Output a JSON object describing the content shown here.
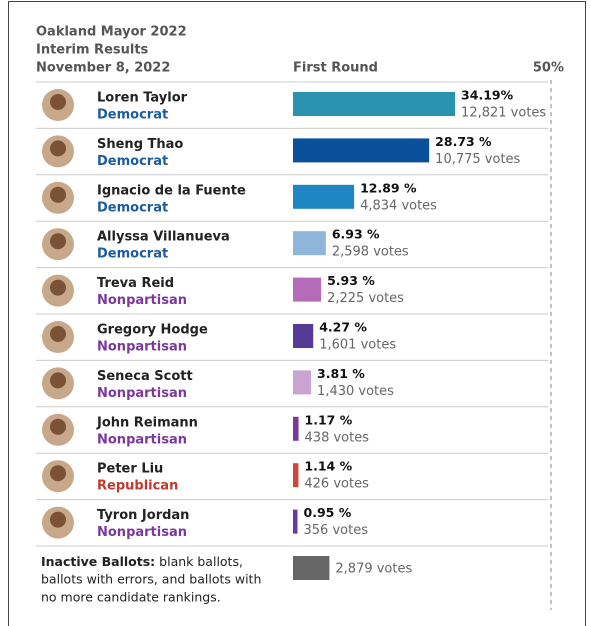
{
  "chart_data": {
    "type": "bar",
    "title": "Oakland Mayor 2022",
    "subtitle": "Interim Results",
    "date": "November 8, 2022",
    "column_label": "First Round",
    "xlim": [
      0,
      50
    ],
    "xticks": [
      {
        "value": 50,
        "label": "50%"
      }
    ],
    "party_colors": {
      "Democrat": "#1c5b9c",
      "Nonpartisan": "#7a3a9a",
      "Republican": "#c0392b"
    },
    "categories": [
      "Loren Taylor",
      "Sheng Thao",
      "Ignacio de la Fuente",
      "Allyssa Villanueva",
      "Treva Reid",
      "Gregory Hodge",
      "Seneca Scott",
      "John Reimann",
      "Peter Liu",
      "Tyron Jordan"
    ],
    "parties": [
      "Democrat",
      "Democrat",
      "Democrat",
      "Democrat",
      "Nonpartisan",
      "Nonpartisan",
      "Nonpartisan",
      "Nonpartisan",
      "Republican",
      "Nonpartisan"
    ],
    "values": [
      34.19,
      28.73,
      12.89,
      6.93,
      5.93,
      4.27,
      3.81,
      1.17,
      1.14,
      0.95
    ],
    "value_labels": [
      "34.19%",
      "28.73 %",
      "12.89 %",
      "6.93 %",
      "5.93 %",
      "4.27 %",
      "3.81 %",
      "1.17 %",
      "1.14 %",
      "0.95 %"
    ],
    "vote_labels": [
      "12,821 votes",
      "10,775 votes",
      "4,834 votes",
      "2,598 votes",
      "2,225 votes",
      "1,601 votes",
      "1,430 votes",
      "438 votes",
      "426 votes",
      "356 votes"
    ],
    "colors": [
      "#2a93b0",
      "#0a4f9a",
      "#1f86c4",
      "#8fb6da",
      "#b56cb8",
      "#553a98",
      "#c9a3d2",
      "#7a3a9a",
      "#d2453a",
      "#6a3a9e"
    ],
    "inactive": {
      "label_bold": "Inactive Ballots:",
      "label_lines": [
        "blank ballots,",
        "ballots with errors, and  ballots with",
        "no more candidate rankings."
      ],
      "value": 7.68,
      "vote_label": "2,879 votes",
      "color": "#666666"
    }
  }
}
